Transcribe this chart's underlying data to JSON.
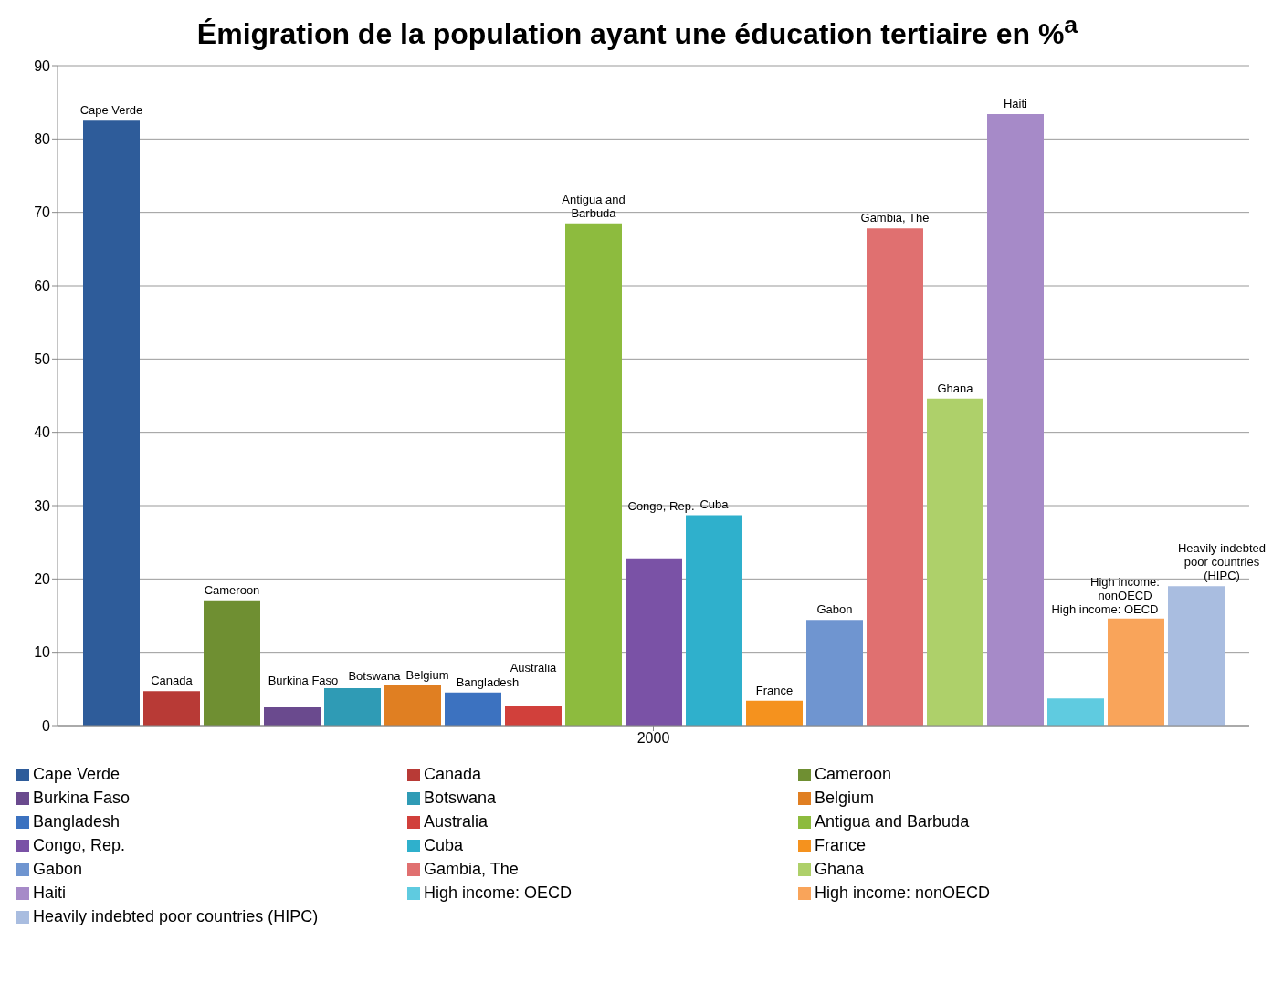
{
  "chart_data": {
    "type": "bar",
    "title": "Émigration de la population ayant une éducation tertiaire en %$^{a}$",
    "categories": [
      "2000"
    ],
    "series": [
      {
        "name": "Cape Verde",
        "color": "#2e5c9a",
        "values": [
          82.5
        ]
      },
      {
        "name": "Canada",
        "color": "#b83a36",
        "values": [
          4.7
        ]
      },
      {
        "name": "Cameroon",
        "color": "#6f8f32",
        "values": [
          17.1
        ]
      },
      {
        "name": "Burkina Faso",
        "color": "#6a4a8e",
        "values": [
          2.5
        ]
      },
      {
        "name": "Botswana",
        "color": "#2f9bb5",
        "values": [
          5.1
        ]
      },
      {
        "name": "Belgium",
        "color": "#e07f22",
        "values": [
          5.5
        ]
      },
      {
        "name": "Bangladesh",
        "color": "#3c72c0",
        "values": [
          4.5
        ]
      },
      {
        "name": "Australia",
        "color": "#d1403b",
        "values": [
          2.7
        ]
      },
      {
        "name": "Antigua and Barbuda",
        "color": "#8dbb3e",
        "values": [
          68.5
        ]
      },
      {
        "name": "Congo, Rep.",
        "color": "#7a52a6",
        "values": [
          22.8
        ]
      },
      {
        "name": "Cuba",
        "color": "#2fb0cc",
        "values": [
          28.7
        ]
      },
      {
        "name": "France",
        "color": "#f5921e",
        "values": [
          3.4
        ]
      },
      {
        "name": "Gabon",
        "color": "#6f95d0",
        "values": [
          14.4
        ]
      },
      {
        "name": "Gambia, The",
        "color": "#e07070",
        "values": [
          67.8
        ]
      },
      {
        "name": "Ghana",
        "color": "#aed06a",
        "values": [
          44.6
        ]
      },
      {
        "name": "Haiti",
        "color": "#a68ac8",
        "values": [
          83.4
        ]
      },
      {
        "name": "High income: OECD",
        "color": "#5fcbe0",
        "values": [
          3.7
        ]
      },
      {
        "name": "High income: nonOECD",
        "color": "#f9a45a",
        "values": [
          14.6
        ]
      },
      {
        "name": "Heavily indebted poor countries (HIPC)",
        "color": "#a9bde0",
        "values": [
          19.0
        ]
      }
    ],
    "ylim": [
      0,
      90
    ],
    "yticks": [
      0,
      10,
      20,
      30,
      40,
      50,
      60,
      70,
      80,
      90
    ],
    "grid": "y",
    "legend": "bottom"
  }
}
